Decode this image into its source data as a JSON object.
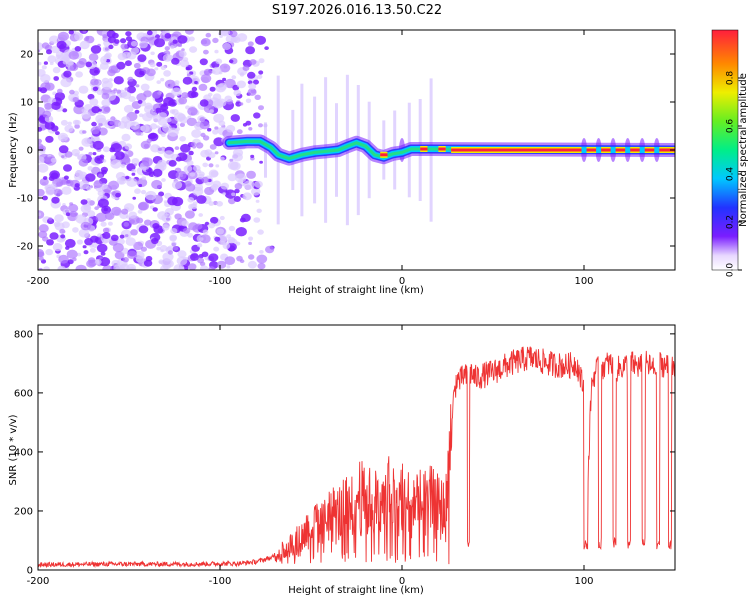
{
  "title": "S197.2026.016.13.50.C22",
  "colors": {
    "snr_line": "#ee3333",
    "spec_low": "#7a1eff",
    "spec_mid": "#22dd88",
    "spec_high": "#ff1e3c"
  },
  "chart_data": [
    {
      "type": "heatmap",
      "name": "spectrogram",
      "xlabel": "Height of straight line (km)",
      "ylabel": "Frequency (Hz)",
      "xlim": [
        -200,
        150
      ],
      "ylim": [
        -25,
        25
      ],
      "xticks": [
        -200,
        -100,
        0,
        100
      ],
      "yticks": [
        -20,
        -10,
        0,
        10,
        20
      ],
      "colorbar": {
        "label": "Normalized spectral amplitude",
        "range": [
          0,
          1
        ],
        "ticks": [
          "0.0",
          "0.2",
          "0.4",
          "0.6",
          "0.8"
        ]
      },
      "signal_track": [
        {
          "x": -95,
          "f": 1.5
        },
        {
          "x": -85,
          "f": 1.8
        },
        {
          "x": -78,
          "f": 1.8
        },
        {
          "x": -72,
          "f": 0.5
        },
        {
          "x": -68,
          "f": -1.0
        },
        {
          "x": -62,
          "f": -1.8
        },
        {
          "x": -55,
          "f": -1.0
        },
        {
          "x": -48,
          "f": -0.5
        },
        {
          "x": -42,
          "f": -0.3
        },
        {
          "x": -35,
          "f": 0.0
        },
        {
          "x": -30,
          "f": 0.8
        },
        {
          "x": -25,
          "f": 1.5
        },
        {
          "x": -20,
          "f": 0.8
        },
        {
          "x": -15,
          "f": -1.0
        },
        {
          "x": -10,
          "f": -1.5
        },
        {
          "x": -5,
          "f": -0.8
        },
        {
          "x": 0,
          "f": -0.5
        },
        {
          "x": 5,
          "f": 0.2
        },
        {
          "x": 15,
          "f": 0.2
        },
        {
          "x": 150,
          "f": 0.0
        }
      ],
      "peak_segments": [
        [
          -12,
          -8
        ],
        [
          10,
          14
        ],
        [
          20,
          24
        ],
        [
          27,
          150
        ]
      ],
      "dropouts": [
        0,
        100,
        108,
        116,
        124,
        132,
        140
      ]
    },
    {
      "type": "line",
      "name": "snr",
      "xlabel": "Height of straight line (km)",
      "ylabel": "SNR (10 * v/v)",
      "xlim": [
        -200,
        150
      ],
      "ylim": [
        0,
        830
      ],
      "xticks": [
        -200,
        -100,
        0,
        100
      ],
      "yticks": [
        0,
        200,
        400,
        600,
        800
      ],
      "series": [
        {
          "name": "SNR",
          "x": [
            -200,
            -160,
            -120,
            -90,
            -80,
            -70,
            -64,
            -60,
            -56,
            -52,
            -48,
            -44,
            -40,
            -36,
            -32,
            -28,
            -24,
            -20,
            -16,
            -12,
            -8,
            -4,
            0,
            4,
            8,
            12,
            16,
            20,
            24,
            27,
            28,
            30,
            32,
            34,
            36,
            38,
            40,
            50,
            60,
            70,
            80,
            90,
            96,
            100,
            101,
            104,
            106,
            110,
            114,
            118,
            122,
            126,
            130,
            134,
            138,
            142,
            146,
            150
          ],
          "y": [
            18,
            20,
            20,
            22,
            28,
            45,
            70,
            90,
            100,
            140,
            160,
            150,
            200,
            180,
            210,
            200,
            260,
            220,
            240,
            200,
            260,
            220,
            260,
            230,
            240,
            220,
            230,
            210,
            200,
            420,
            560,
            650,
            640,
            660,
            650,
            670,
            650,
            670,
            700,
            720,
            700,
            690,
            700,
            610,
            90,
            620,
            670,
            690,
            700,
            680,
            690,
            700,
            690,
            700,
            680,
            700,
            690,
            670
          ]
        }
      ]
    }
  ]
}
